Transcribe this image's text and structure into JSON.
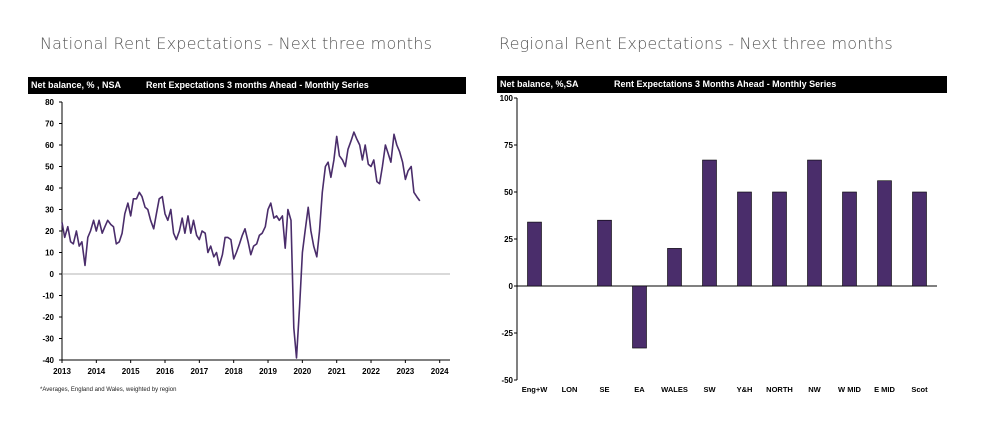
{
  "national": {
    "title": "National Rent Expectations - Next three months",
    "header_left": "Net balance, % , NSA",
    "header_center": "Rent Expectations 3 months Ahead -  Monthly Series",
    "footnote": "*Averages, England and Wales, weighted by region"
  },
  "regional": {
    "title": "Regional Rent Expectations - Next three months",
    "header_left": "Net balance, %,SA",
    "header_center": "Rent Expectations 3 Months Ahead - Monthly Series"
  },
  "colors": {
    "series": "#4a2d6b",
    "bar": "#4a2d6b",
    "header_bg": "#000000"
  },
  "chart_data": [
    {
      "type": "line",
      "title": "Rent Expectations 3 months Ahead -  Monthly Series",
      "ylabel": "Net balance, % , NSA",
      "ylim": [
        -40,
        80
      ],
      "yticks": [
        -40,
        -30,
        -20,
        -10,
        0,
        10,
        20,
        30,
        40,
        50,
        60,
        70,
        80
      ],
      "xlim": [
        2013.0,
        2024.3
      ],
      "xticks": [
        "2013",
        "2014",
        "2015",
        "2016",
        "2017",
        "2018",
        "2019",
        "2020",
        "2021",
        "2022",
        "2023",
        "2024"
      ],
      "grid": false,
      "points": [
        [
          2013.0,
          24
        ],
        [
          2013.08,
          17
        ],
        [
          2013.17,
          22
        ],
        [
          2013.25,
          15
        ],
        [
          2013.33,
          14
        ],
        [
          2013.42,
          20
        ],
        [
          2013.5,
          13
        ],
        [
          2013.58,
          15
        ],
        [
          2013.67,
          4
        ],
        [
          2013.75,
          17
        ],
        [
          2013.83,
          20
        ],
        [
          2013.92,
          25
        ],
        [
          2014.0,
          20
        ],
        [
          2014.08,
          25
        ],
        [
          2014.17,
          19
        ],
        [
          2014.25,
          22
        ],
        [
          2014.33,
          25
        ],
        [
          2014.42,
          23
        ],
        [
          2014.5,
          22
        ],
        [
          2014.58,
          14
        ],
        [
          2014.67,
          15
        ],
        [
          2014.75,
          19
        ],
        [
          2014.83,
          28
        ],
        [
          2014.92,
          33
        ],
        [
          2015.0,
          27
        ],
        [
          2015.08,
          35
        ],
        [
          2015.17,
          35
        ],
        [
          2015.25,
          38
        ],
        [
          2015.33,
          36
        ],
        [
          2015.42,
          31
        ],
        [
          2015.5,
          30
        ],
        [
          2015.58,
          25
        ],
        [
          2015.67,
          21
        ],
        [
          2015.75,
          28
        ],
        [
          2015.83,
          35
        ],
        [
          2015.92,
          36
        ],
        [
          2016.0,
          28
        ],
        [
          2016.08,
          25
        ],
        [
          2016.17,
          30
        ],
        [
          2016.25,
          19
        ],
        [
          2016.33,
          16
        ],
        [
          2016.42,
          20
        ],
        [
          2016.5,
          26
        ],
        [
          2016.58,
          19
        ],
        [
          2016.67,
          27
        ],
        [
          2016.75,
          19
        ],
        [
          2016.83,
          25
        ],
        [
          2016.92,
          18
        ],
        [
          2017.0,
          16
        ],
        [
          2017.08,
          20
        ],
        [
          2017.17,
          19
        ],
        [
          2017.25,
          10
        ],
        [
          2017.33,
          13
        ],
        [
          2017.42,
          8
        ],
        [
          2017.5,
          10
        ],
        [
          2017.58,
          4
        ],
        [
          2017.67,
          9
        ],
        [
          2017.75,
          17
        ],
        [
          2017.83,
          17
        ],
        [
          2017.92,
          16
        ],
        [
          2018.0,
          7
        ],
        [
          2018.08,
          10
        ],
        [
          2018.17,
          14
        ],
        [
          2018.25,
          18
        ],
        [
          2018.33,
          21
        ],
        [
          2018.42,
          15
        ],
        [
          2018.5,
          9
        ],
        [
          2018.58,
          13
        ],
        [
          2018.67,
          14
        ],
        [
          2018.75,
          18
        ],
        [
          2018.83,
          19
        ],
        [
          2018.92,
          22
        ],
        [
          2019.0,
          30
        ],
        [
          2019.08,
          33
        ],
        [
          2019.17,
          26
        ],
        [
          2019.25,
          27
        ],
        [
          2019.33,
          25
        ],
        [
          2019.42,
          27
        ],
        [
          2019.5,
          12
        ],
        [
          2019.58,
          30
        ],
        [
          2019.67,
          25
        ],
        [
          2019.75,
          -25
        ],
        [
          2019.83,
          -39
        ],
        [
          2019.92,
          -15
        ],
        [
          2020.0,
          10
        ],
        [
          2020.08,
          20
        ],
        [
          2020.17,
          31
        ],
        [
          2020.25,
          20
        ],
        [
          2020.33,
          13
        ],
        [
          2020.42,
          8
        ],
        [
          2020.5,
          20
        ],
        [
          2020.58,
          38
        ],
        [
          2020.67,
          50
        ],
        [
          2020.75,
          52
        ],
        [
          2020.83,
          45
        ],
        [
          2020.92,
          53
        ],
        [
          2021.0,
          64
        ],
        [
          2021.08,
          55
        ],
        [
          2021.17,
          53
        ],
        [
          2021.25,
          50
        ],
        [
          2021.33,
          58
        ],
        [
          2021.42,
          62
        ],
        [
          2021.5,
          66
        ],
        [
          2021.58,
          63
        ],
        [
          2021.67,
          60
        ],
        [
          2021.75,
          53
        ],
        [
          2021.83,
          60
        ],
        [
          2021.92,
          51
        ],
        [
          2022.0,
          50
        ],
        [
          2022.08,
          53
        ],
        [
          2022.17,
          43
        ],
        [
          2022.25,
          42
        ],
        [
          2022.33,
          50
        ],
        [
          2022.42,
          60
        ],
        [
          2022.5,
          56
        ],
        [
          2022.58,
          52
        ],
        [
          2022.67,
          65
        ],
        [
          2022.75,
          60
        ],
        [
          2022.83,
          57
        ],
        [
          2022.92,
          52
        ],
        [
          2023.0,
          44
        ],
        [
          2023.08,
          48
        ],
        [
          2023.17,
          50
        ],
        [
          2023.25,
          38
        ],
        [
          2023.33,
          36
        ],
        [
          2023.42,
          34
        ]
      ],
      "footnote": "*Averages, England and Wales, weighted by region"
    },
    {
      "type": "bar",
      "title": "Rent Expectations 3 Months Ahead - Monthly Series",
      "ylabel": "Net balance, %,SA",
      "ylim": [
        -50,
        100
      ],
      "yticks": [
        -50,
        -25,
        0,
        25,
        50,
        75,
        100
      ],
      "categories": [
        "Eng+W",
        "LON",
        "SE",
        "EA",
        "WALES",
        "SW",
        "Y&H",
        "NORTH",
        "NW",
        "W MID",
        "E MID",
        "Scot"
      ],
      "values": [
        34,
        0,
        35,
        -33,
        20,
        67,
        50,
        50,
        67,
        50,
        56,
        50
      ]
    }
  ]
}
